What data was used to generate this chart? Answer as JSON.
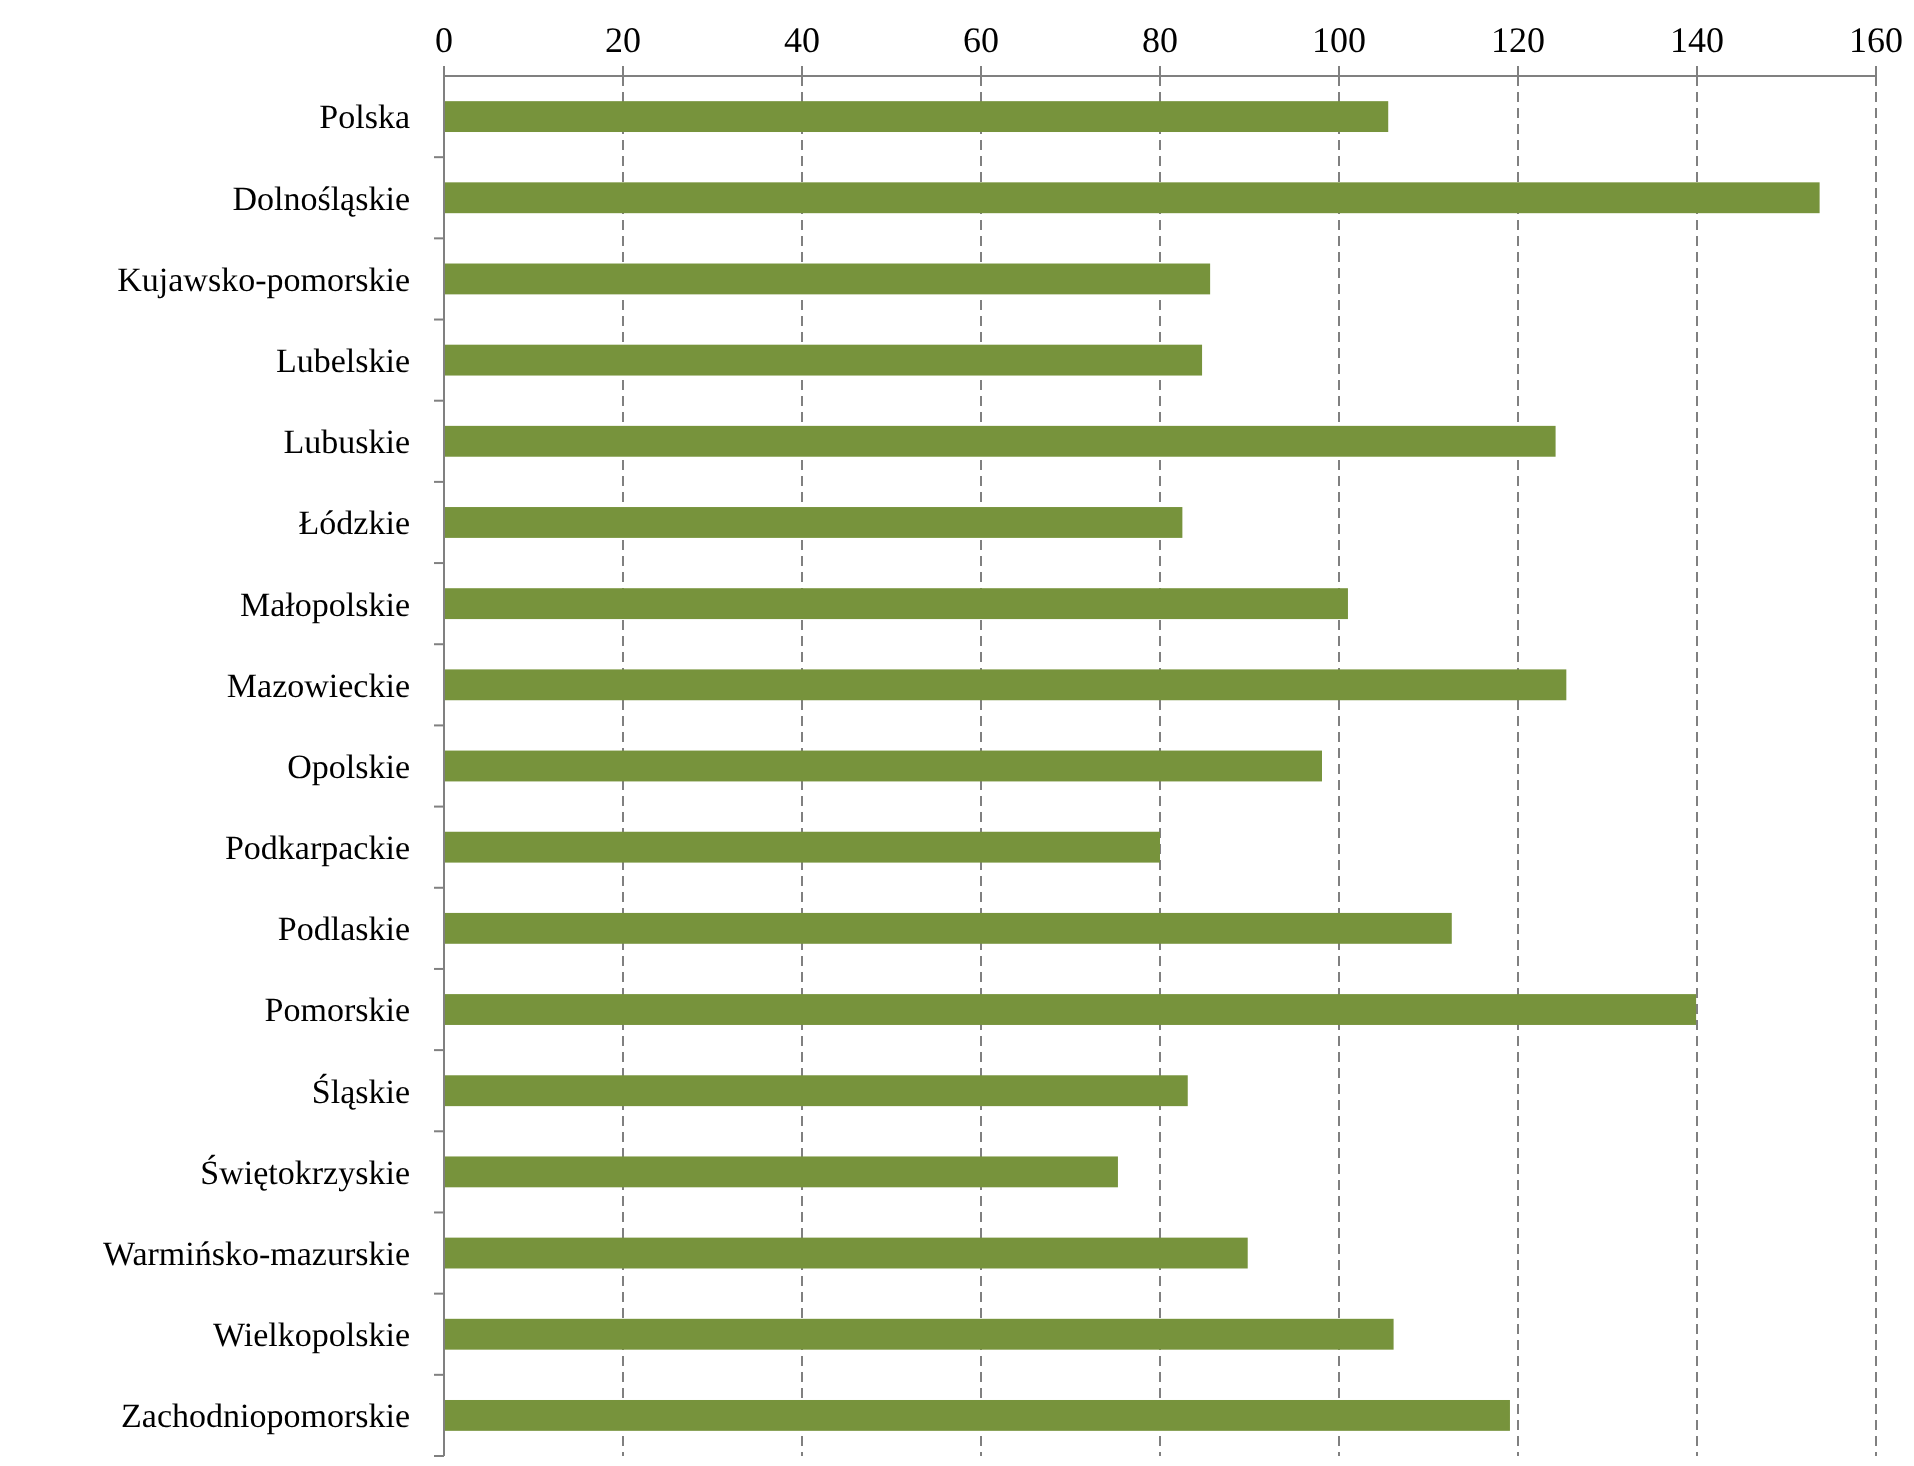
{
  "chart_data": {
    "type": "bar",
    "orientation": "horizontal",
    "categories": [
      "Polska",
      "Dolnośląskie",
      "Kujawsko-pomorskie",
      "Lubelskie",
      "Lubuskie",
      "Łódzkie",
      "Małopolskie",
      "Mazowieckie",
      "Opolskie",
      "Podkarpackie",
      "Podlaskie",
      "Pomorskie",
      "Śląskie",
      "Świętokrzyskie",
      "Warmińsko-mazurskie",
      "Wielkopolskie",
      "Zachodniopomorskie"
    ],
    "values": [
      105.5,
      153.7,
      85.6,
      84.7,
      124.2,
      82.5,
      101,
      125.4,
      98.1,
      80,
      112.6,
      139.9,
      83.1,
      75.3,
      89.8,
      106.1,
      119.1
    ],
    "color": "#77933c",
    "xlim": [
      0,
      160
    ],
    "xticks": [
      0,
      20,
      40,
      60,
      80,
      100,
      120,
      140,
      160
    ],
    "grid": "x"
  }
}
